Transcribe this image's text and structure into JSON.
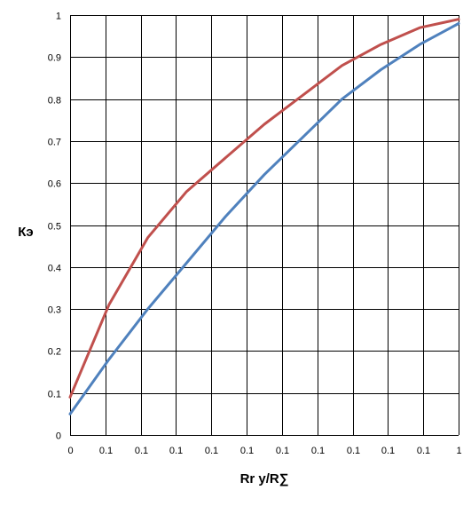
{
  "chart_data": {
    "type": "line",
    "title": "",
    "xlabel": "Rr y/R∑",
    "ylabel": "Кэ",
    "x_tick_labels": [
      "0",
      "0.1",
      "0.1",
      "0.1",
      "0.1",
      "0.1",
      "0.1",
      "0.1",
      "0.1",
      "0.1",
      "0.1",
      "1"
    ],
    "y_tick_labels": [
      "0",
      "0.1",
      "0.2",
      "0.3",
      "0.4",
      "0.5",
      "0.6",
      "0.7",
      "0.8",
      "0.9",
      "1"
    ],
    "x": [
      0,
      0.1,
      0.2,
      0.3,
      0.4,
      0.5,
      0.6,
      0.7,
      0.8,
      0.9,
      1.0
    ],
    "ylim": [
      0,
      1
    ],
    "xlim": [
      0,
      1
    ],
    "grid": true,
    "legend": "none",
    "series": [
      {
        "color": "#c0504d",
        "values": [
          0.09,
          0.31,
          0.47,
          0.58,
          0.66,
          0.74,
          0.81,
          0.88,
          0.93,
          0.97,
          0.99
        ]
      },
      {
        "color": "#4f81bd",
        "values": [
          0.05,
          0.18,
          0.3,
          0.41,
          0.52,
          0.62,
          0.71,
          0.8,
          0.87,
          0.93,
          0.98
        ]
      }
    ]
  }
}
